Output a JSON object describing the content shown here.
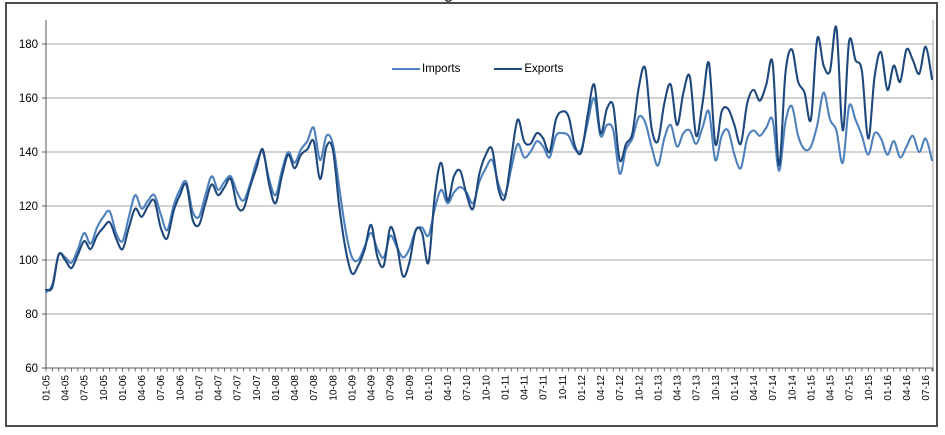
{
  "window": {
    "background": "#ffffff",
    "frame_border_color": "#4d4d4d"
  },
  "title_fragment": "g",
  "axes": {
    "grid_color": "#a6a6a6",
    "axis_color": "#595959",
    "tick_label_color": "#000000"
  },
  "chart_data": {
    "type": "line",
    "title": "",
    "x_unit": "month",
    "x_range": [
      "01-05",
      "08-16"
    ],
    "x_label_every_n_months": 3,
    "x_tick_labels": [
      "01-05",
      "04-05",
      "07-05",
      "10-05",
      "01-06",
      "04-06",
      "07-06",
      "10-06",
      "01-07",
      "04-07",
      "07-07",
      "10-07",
      "01-08",
      "04-08",
      "07-08",
      "10-08",
      "01-09",
      "04-09",
      "07-09",
      "10-09",
      "01-10",
      "04-10",
      "07-10",
      "10-10",
      "01-11",
      "04-11",
      "07-11",
      "10-11",
      "01-12",
      "04-12",
      "07-12",
      "10-12",
      "01-13",
      "04-13",
      "07-13",
      "10-13",
      "01-14",
      "04-14",
      "07-14",
      "10-14",
      "01-15",
      "04-15",
      "07-15",
      "10-15",
      "01-16",
      "04-16",
      "07-16"
    ],
    "y_ticks": [
      60,
      80,
      100,
      120,
      140,
      160,
      180
    ],
    "ylim": [
      60,
      189
    ],
    "grid": "horizontal",
    "legend_position": "top-inside",
    "series": [
      {
        "name": "Imports",
        "color": "#4F81BD",
        "values": [
          88,
          91,
          102,
          101,
          99,
          104,
          110,
          106,
          112,
          116,
          118,
          110,
          107,
          116,
          124,
          119,
          122,
          124,
          117,
          111,
          120,
          126,
          129,
          118,
          116,
          124,
          131,
          126,
          129,
          131,
          125,
          122,
          128,
          136,
          140,
          130,
          124,
          133,
          140,
          136,
          141,
          144,
          149,
          137,
          146,
          143,
          127,
          111,
          101,
          100,
          105,
          110,
          104,
          101,
          109,
          105,
          101,
          104,
          111,
          112,
          109,
          119,
          126,
          121,
          125,
          127,
          125,
          121,
          129,
          134,
          137,
          128,
          124,
          134,
          143,
          138,
          140,
          144,
          142,
          138,
          146,
          147,
          146,
          141,
          141,
          151,
          160,
          146,
          150,
          148,
          132,
          141,
          145,
          153,
          151,
          142,
          135,
          145,
          150,
          142,
          147,
          148,
          143,
          149,
          155,
          137,
          146,
          148,
          139,
          134,
          145,
          148,
          146,
          149,
          152,
          133,
          151,
          157,
          146,
          141,
          142,
          150,
          162,
          152,
          148,
          136,
          157,
          152,
          146,
          139,
          147,
          145,
          139,
          144,
          138,
          142,
          146,
          140,
          145,
          137
        ]
      },
      {
        "name": "Exports",
        "color": "#1F497D",
        "values": [
          89,
          90,
          102,
          100,
          97,
          102,
          107,
          104,
          109,
          112,
          114,
          108,
          104,
          112,
          119,
          116,
          120,
          122,
          112,
          108,
          118,
          124,
          128,
          115,
          113,
          121,
          128,
          124,
          127,
          130,
          120,
          119,
          127,
          134,
          141,
          128,
          121,
          131,
          139,
          134,
          139,
          141,
          144,
          130,
          142,
          141,
          120,
          104,
          95,
          98,
          104,
          113,
          101,
          98,
          112,
          106,
          94,
          99,
          111,
          110,
          99,
          124,
          136,
          122,
          131,
          133,
          124,
          119,
          132,
          139,
          141,
          126,
          123,
          138,
          152,
          144,
          143,
          147,
          145,
          140,
          152,
          155,
          153,
          142,
          140,
          154,
          165,
          147,
          156,
          157,
          137,
          143,
          147,
          164,
          171,
          149,
          144,
          158,
          165,
          150,
          162,
          168,
          146,
          158,
          173,
          143,
          155,
          156,
          150,
          143,
          158,
          163,
          159,
          165,
          173,
          135,
          169,
          178,
          166,
          162,
          152,
          182,
          172,
          170,
          186,
          148,
          181,
          174,
          170,
          145,
          168,
          177,
          163,
          172,
          166,
          178,
          174,
          169,
          179,
          167
        ]
      }
    ]
  }
}
